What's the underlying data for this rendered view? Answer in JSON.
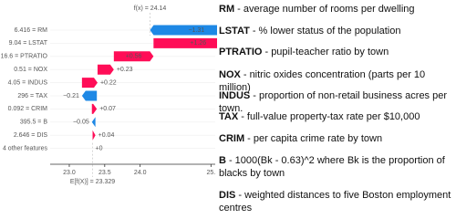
{
  "chart_data": {
    "type": "waterfall",
    "output_label": "f(x) = 24.14",
    "output_value": 24.14,
    "base_label": "E[f(X)] = 23.329",
    "base_value": 23.329,
    "rows": [
      "6.416 = RM",
      "9.04 = LSTAT",
      "16.6 = PTRATIO",
      "0.51 = NOX",
      "4.05 = INDUS",
      "296 = TAX",
      "0.092 = CRIM",
      "395.5 = B",
      "2.646 = DIS",
      "4 other features"
    ],
    "values": [
      -1.31,
      1.26,
      0.56,
      0.23,
      0.22,
      -0.21,
      0.07,
      -0.05,
      0.04,
      0
    ],
    "value_labels": [
      "−1.31",
      "+1.26",
      "+0.56",
      "+0.23",
      "+0.22",
      "−0.21",
      "+0.07",
      "−0.05",
      "+0.04",
      "+0"
    ],
    "positive_color": "#ff0d57",
    "negative_color": "#1e88e5",
    "xlim": [
      22.73,
      25.06
    ],
    "xticks": [
      {
        "value": 23,
        "label": "23.0"
      },
      23.5,
      {
        "value": 24,
        "label": "24.0"
      },
      {
        "value": 25,
        "label": "25."
      }
    ]
  },
  "descriptions": [
    {
      "name": "RM",
      "text": "- average number of rooms per dwelling"
    },
    {
      "name": "LSTAT",
      "text": "- % lower status of the population"
    },
    {
      "name": "PTRATIO",
      "text": "- pupil-teacher ratio by town"
    },
    {
      "name": "NOX",
      "text": "- nitric oxides concentration (parts per 10 million)"
    },
    {
      "name": "INDUS",
      "text": "- proportion of non-retail business acres per town."
    },
    {
      "name": "TAX",
      "text": "- full-value property-tax rate per $10,000"
    },
    {
      "name": "CRIM",
      "text": "- per capita crime rate by town"
    },
    {
      "name": "B",
      "text": "- 1000(Bk - 0.63)^2 where Bk is the proportion of blacks by town"
    },
    {
      "name": "DIS",
      "text": "- weighted distances to five Boston employment centres"
    }
  ]
}
